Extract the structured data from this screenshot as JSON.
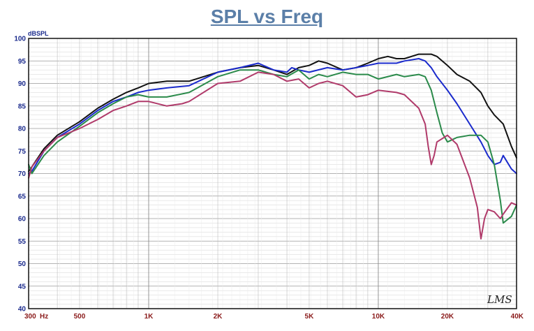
{
  "chart_data": {
    "type": "line",
    "title": "SPL vs Freq",
    "ylabel": "dBSPL",
    "xlabel": "",
    "xscale": "log",
    "xlim": [
      300,
      40000
    ],
    "ylim": [
      40,
      100
    ],
    "grid": true,
    "y_ticks": [
      "40",
      "45",
      "50",
      "55",
      "60",
      "65",
      "70",
      "75",
      "80",
      "85",
      "90",
      "95",
      "100"
    ],
    "x_ticks": [
      {
        "value": 300,
        "label": "300"
      },
      {
        "value": 500,
        "label": "500"
      },
      {
        "value": 1000,
        "label": "1K"
      },
      {
        "value": 2000,
        "label": "2K"
      },
      {
        "value": 5000,
        "label": "5K"
      },
      {
        "value": 10000,
        "label": "10K"
      },
      {
        "value": 20000,
        "label": "20K"
      },
      {
        "value": 40000,
        "label": "40K"
      }
    ],
    "x_unit_label": "Hz",
    "watermark": "LMS",
    "series": [
      {
        "color": "#111111",
        "x": [
          300,
          310,
          350,
          400,
          500,
          600,
          700,
          800,
          900,
          1000,
          1200,
          1500,
          2000,
          2500,
          3000,
          3500,
          4000,
          4500,
          5000,
          5500,
          6000,
          7000,
          8000,
          9000,
          10000,
          11000,
          12000,
          13000,
          15000,
          16000,
          17000,
          18000,
          20000,
          22000,
          25000,
          28000,
          30000,
          32000,
          35000,
          38000,
          40000
        ],
        "y": [
          70.5,
          71.5,
          75.5,
          78.5,
          81.5,
          84.5,
          86.5,
          88,
          89,
          90,
          90.5,
          90.5,
          92.5,
          93.5,
          94,
          93,
          92,
          93.5,
          94,
          95,
          94.5,
          93,
          93.5,
          94.5,
          95.5,
          96,
          95.5,
          95.5,
          96.5,
          96.5,
          96.5,
          96,
          94,
          92,
          90.5,
          88,
          85,
          83,
          81,
          76,
          73.5
        ]
      },
      {
        "color": "#1a2acc",
        "x": [
          300,
          310,
          350,
          400,
          500,
          600,
          700,
          800,
          900,
          1000,
          1200,
          1500,
          2000,
          2500,
          3000,
          3500,
          4000,
          4200,
          4500,
          5000,
          6000,
          7000,
          8000,
          9000,
          10000,
          11000,
          12000,
          13000,
          15000,
          16000,
          17000,
          18000,
          20000,
          22000,
          25000,
          28000,
          30000,
          32000,
          34000,
          35000,
          38000,
          40000
        ],
        "y": [
          70,
          70.5,
          75,
          78,
          81,
          84,
          86,
          87,
          88,
          88.5,
          89,
          89.5,
          92.5,
          93.5,
          94.5,
          93,
          92.5,
          93.5,
          93,
          92.5,
          93.5,
          93,
          93.5,
          94,
          94.5,
          94.5,
          94.5,
          95,
          95.5,
          95,
          93.5,
          91.5,
          88.5,
          85.5,
          81,
          77,
          74,
          72,
          72.5,
          74,
          71,
          70
        ]
      },
      {
        "color": "#2a8a4a",
        "x": [
          300,
          310,
          350,
          400,
          500,
          600,
          700,
          800,
          900,
          1000,
          1200,
          1500,
          2000,
          2500,
          3000,
          3500,
          4000,
          4500,
          5000,
          5500,
          6000,
          7000,
          8000,
          9000,
          10000,
          12000,
          13000,
          15000,
          16000,
          17000,
          18000,
          19000,
          20000,
          22000,
          25000,
          26000,
          28000,
          30000,
          32000,
          34000,
          35000,
          38000,
          40000
        ],
        "y": [
          72,
          70,
          74,
          77,
          80.5,
          83.5,
          85.5,
          87,
          87.5,
          87,
          87,
          88,
          91.5,
          93,
          93,
          92,
          91.5,
          93,
          91,
          92,
          91.5,
          92.5,
          92,
          92,
          91,
          92,
          91.5,
          92,
          91.5,
          88.5,
          83.5,
          79,
          77,
          78,
          78.5,
          78.5,
          78.5,
          77,
          72,
          64,
          59,
          60.5,
          63
        ]
      },
      {
        "color": "#b03a6a",
        "x": [
          300,
          310,
          350,
          400,
          500,
          600,
          700,
          800,
          900,
          1000,
          1200,
          1400,
          1500,
          2000,
          2500,
          3000,
          3500,
          4000,
          4500,
          5000,
          5500,
          6000,
          7000,
          8000,
          9000,
          10000,
          12000,
          13000,
          15000,
          16000,
          16500,
          17000,
          17500,
          18000,
          20000,
          22000,
          25000,
          27000,
          28000,
          29000,
          30000,
          32000,
          34000,
          35000,
          38000,
          40000
        ],
        "y": [
          69,
          71.5,
          75,
          78,
          80,
          82,
          84,
          85,
          86,
          86,
          85,
          85.5,
          86,
          90,
          90.5,
          92.5,
          92,
          90.5,
          91,
          89,
          90,
          90.5,
          89.5,
          87,
          87.5,
          88.5,
          88,
          87.5,
          84.5,
          81,
          76,
          72,
          74,
          77,
          78.5,
          76.5,
          69,
          62.5,
          55.5,
          60,
          62,
          61.5,
          60,
          61,
          63.5,
          63
        ]
      }
    ]
  }
}
